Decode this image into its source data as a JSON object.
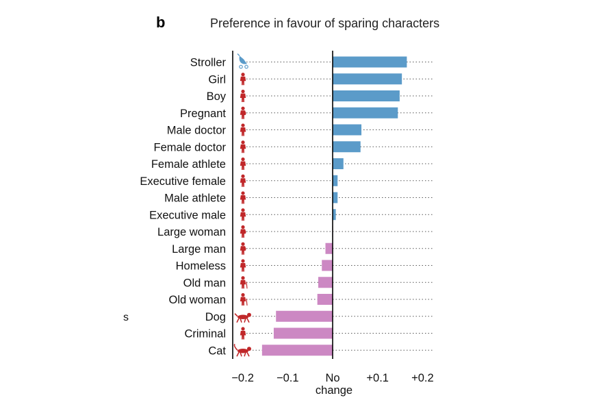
{
  "panel_letter": "b",
  "side_label": "s",
  "colors": {
    "positive": "#5b9bc9",
    "negative": "#cc88c3",
    "icon": "#c0282a"
  },
  "chart_data": {
    "type": "bar",
    "orientation": "horizontal",
    "title": "Preference in favour of sparing characters",
    "categories": [
      "Stroller",
      "Girl",
      "Boy",
      "Pregnant",
      "Male doctor",
      "Female doctor",
      "Female athlete",
      "Executive female",
      "Male athlete",
      "Executive male",
      "Large woman",
      "Large man",
      "Homeless",
      "Old man",
      "Old woman",
      "Dog",
      "Criminal",
      "Cat"
    ],
    "values": [
      0.165,
      0.154,
      0.149,
      0.145,
      0.064,
      0.062,
      0.024,
      0.011,
      0.011,
      0.007,
      -0.001,
      -0.016,
      -0.024,
      -0.032,
      -0.034,
      -0.126,
      -0.131,
      -0.157
    ],
    "icons": [
      "stroller-icon",
      "girl-icon",
      "boy-icon",
      "pregnant-icon",
      "male-doctor-icon",
      "female-doctor-icon",
      "female-athlete-icon",
      "executive-female-icon",
      "male-athlete-icon",
      "executive-male-icon",
      "large-woman-icon",
      "large-man-icon",
      "homeless-icon",
      "old-man-icon",
      "old-woman-icon",
      "dog-icon",
      "criminal-icon",
      "cat-icon"
    ],
    "xlim": [
      -0.22,
      0.22
    ],
    "xticks": [
      -0.2,
      -0.1,
      0,
      0.1,
      0.2
    ],
    "xtick_labels": [
      "−0.2",
      "−0.1",
      "No",
      "+0.1",
      "+0.2"
    ],
    "xtick_zero_sublabel": "change",
    "grid": "dotted horizontal"
  }
}
